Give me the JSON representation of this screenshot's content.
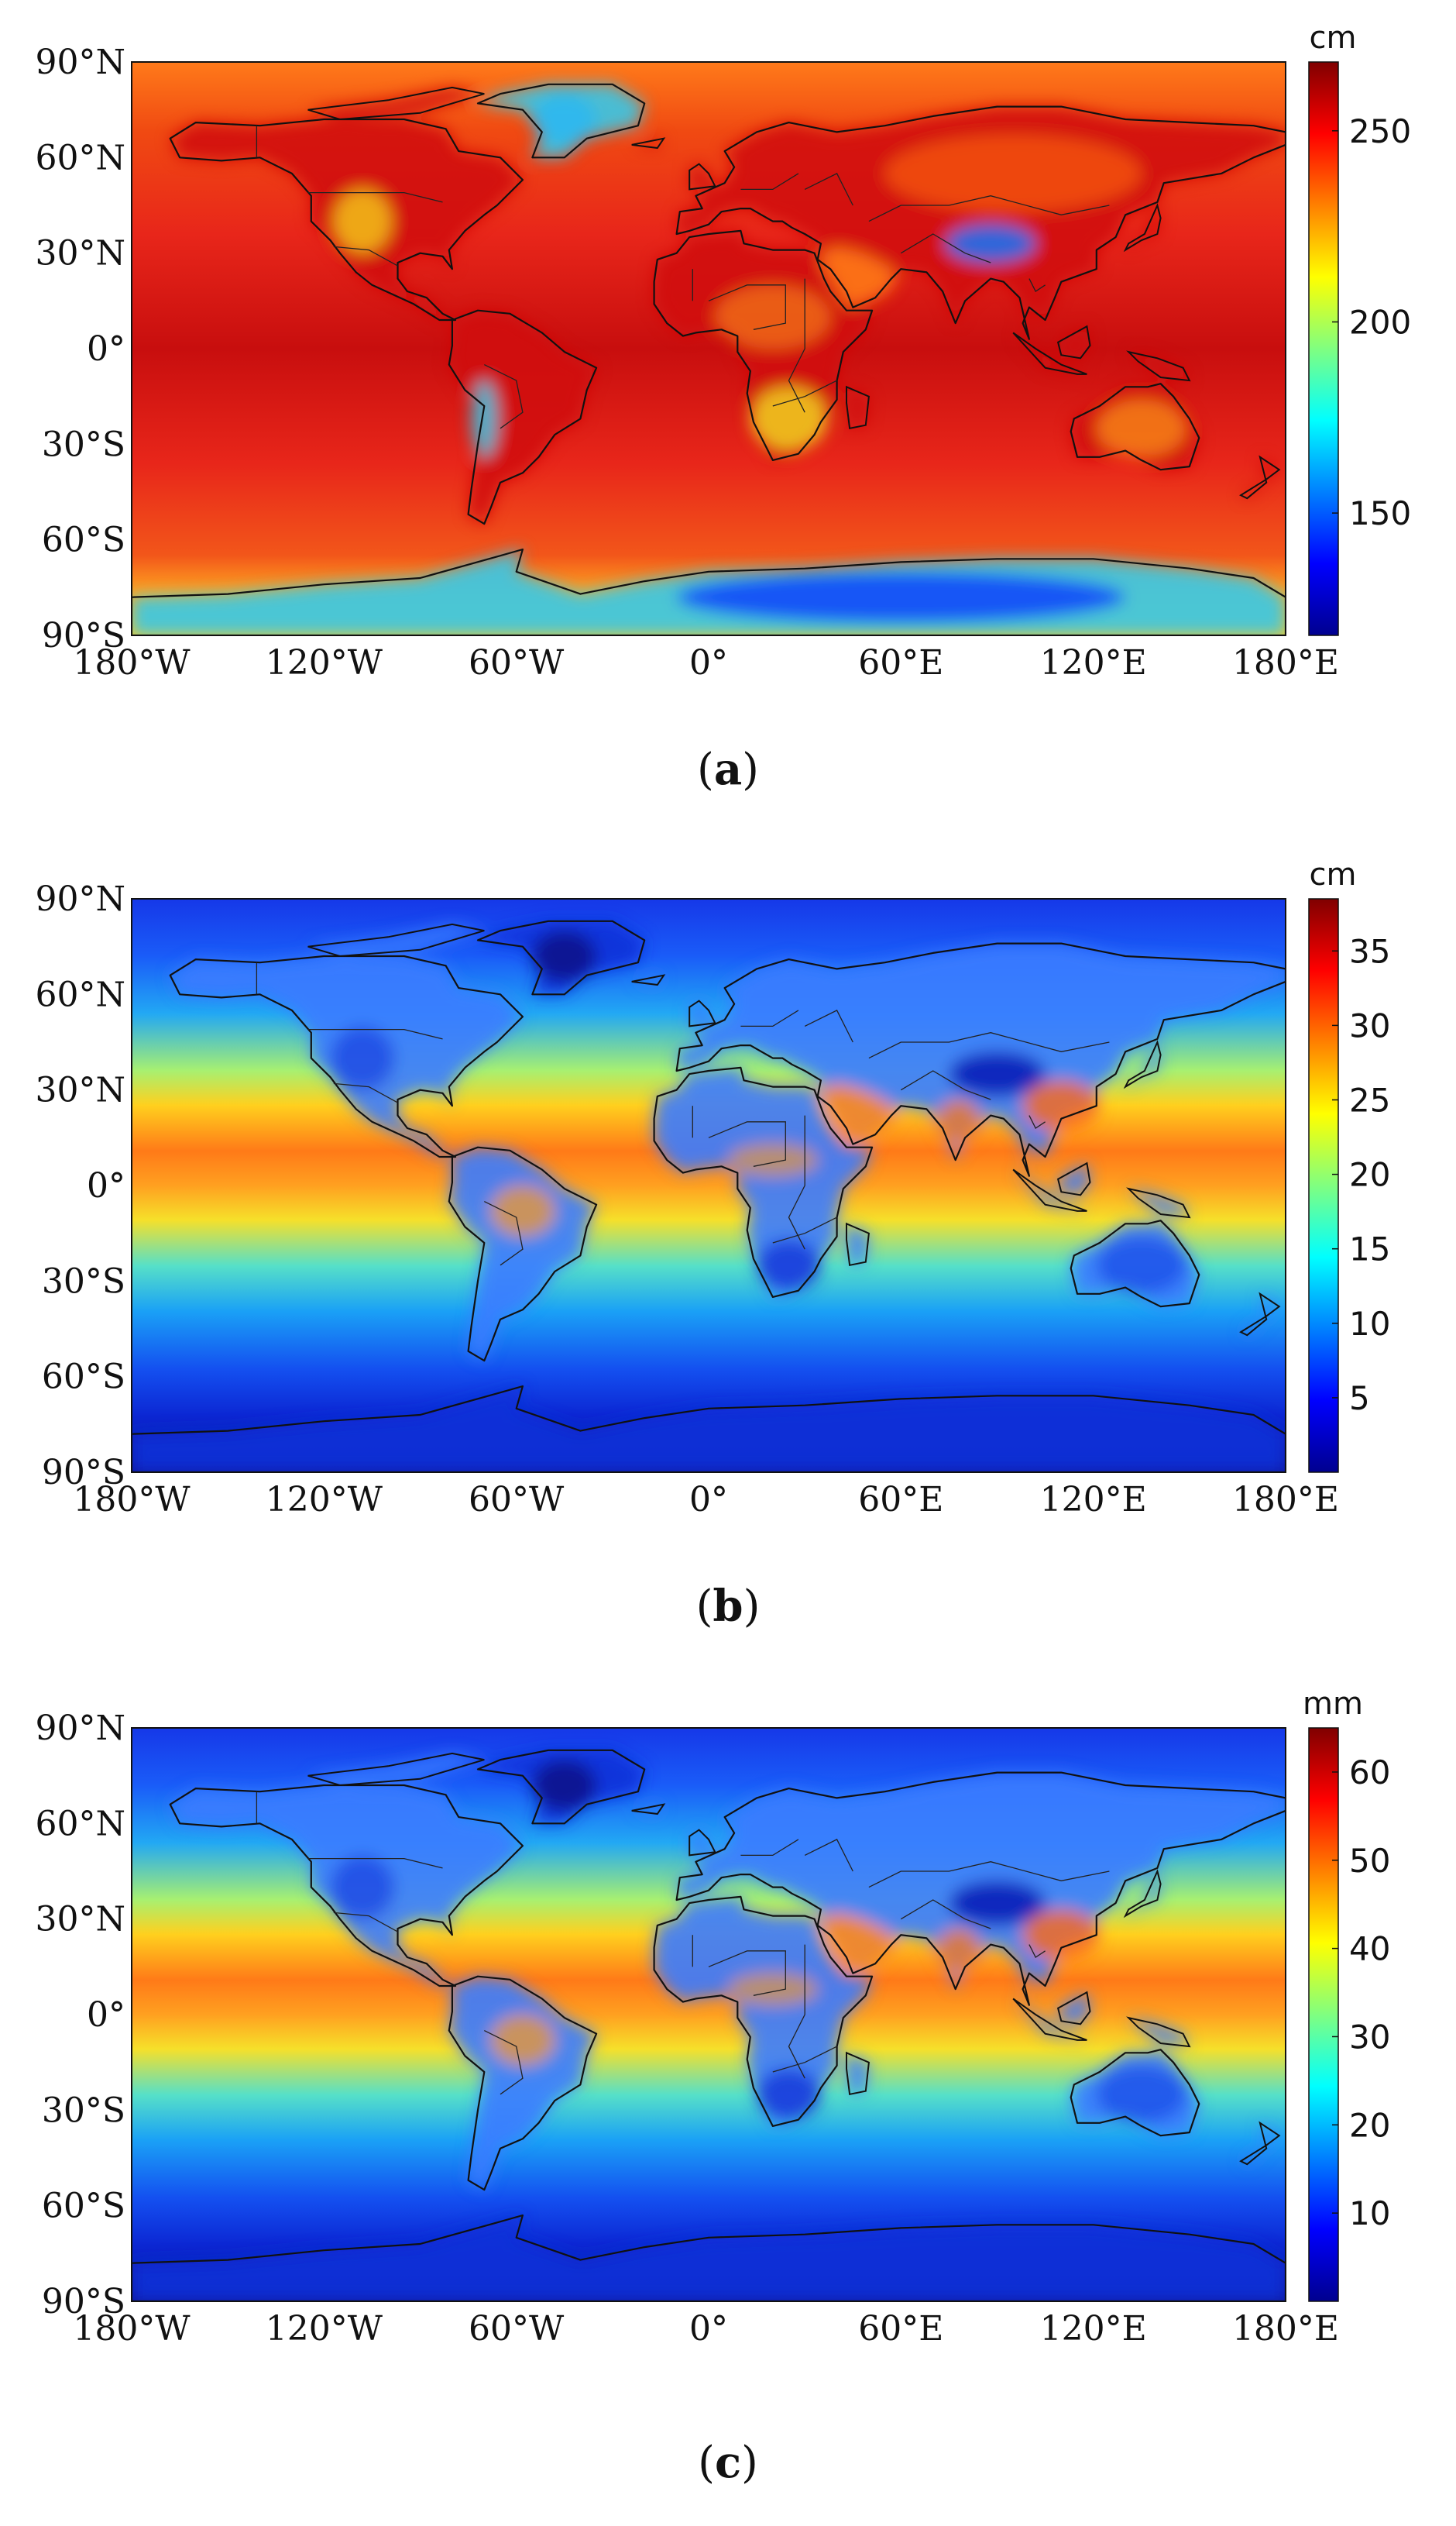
{
  "panels": [
    {
      "id": "a",
      "caption_open": "(",
      "caption_letter": "a",
      "caption_close": ")",
      "unit": "cm",
      "colorbar_ticks": [
        {
          "label": "250",
          "value": 250
        },
        {
          "label": "200",
          "value": 200
        },
        {
          "label": "150",
          "value": 150
        }
      ],
      "colorbar_range": [
        118,
        268
      ],
      "theme": "high",
      "colors": {
        "ocean": "#e8261a",
        "land_main": "#d0100c",
        "desert": "#f3c21c",
        "highland": "#36c8e8",
        "polar": "#2860ff"
      }
    },
    {
      "id": "b",
      "caption_open": "(",
      "caption_letter": "b",
      "caption_close": ")",
      "unit": "cm",
      "colorbar_ticks": [
        {
          "label": "35",
          "value": 35
        },
        {
          "label": "30",
          "value": 30
        },
        {
          "label": "25",
          "value": 25
        },
        {
          "label": "20",
          "value": 20
        },
        {
          "label": "15",
          "value": 15
        },
        {
          "label": "10",
          "value": 10
        },
        {
          "label": "5",
          "value": 5
        }
      ],
      "colorbar_range": [
        0,
        38.5
      ],
      "theme": "wet",
      "colors": {
        "tropics": "#ff7a18",
        "subtropics": "#f4e62a",
        "midlat": "#24c8f0",
        "polar": "#1030d8",
        "land": "#3a7cff"
      }
    },
    {
      "id": "c",
      "caption_open": "(",
      "caption_letter": "c",
      "caption_close": ")",
      "unit": "mm",
      "colorbar_ticks": [
        {
          "label": "60",
          "value": 60
        },
        {
          "label": "50",
          "value": 50
        },
        {
          "label": "40",
          "value": 40
        },
        {
          "label": "30",
          "value": 30
        },
        {
          "label": "20",
          "value": 20
        },
        {
          "label": "10",
          "value": 10
        }
      ],
      "colorbar_range": [
        0,
        65
      ],
      "theme": "wet",
      "colors": {
        "tropics": "#ff7a18",
        "subtropics": "#f4e62a",
        "midlat": "#24c8f0",
        "polar": "#1030d8",
        "land": "#3a7cff"
      }
    }
  ],
  "latitude_ticks": [
    "90°N",
    "60°N",
    "30°N",
    "0°",
    "30°S",
    "60°S",
    "90°S"
  ],
  "longitude_ticks": [
    "180°W",
    "120°W",
    "60°W",
    "0°",
    "60°E",
    "120°E",
    "180°E"
  ],
  "colormap": [
    "#00008f",
    "#0000ff",
    "#0080ff",
    "#00ffff",
    "#80ff80",
    "#ffff00",
    "#ff8000",
    "#ff0000",
    "#800000"
  ]
}
